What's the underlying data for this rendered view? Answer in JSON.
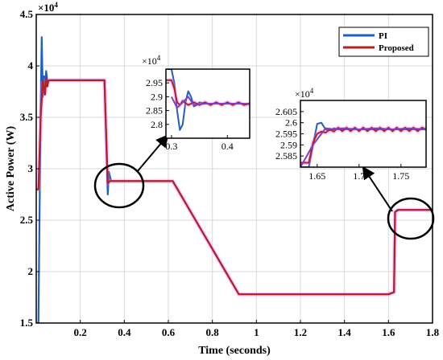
{
  "chart_data": [
    {
      "type": "line",
      "title": "",
      "xlabel": "Time (seconds)",
      "ylabel": "Active Power (W)",
      "y_exponent_label": "×10",
      "y_exponent_power": "4",
      "xlim": [
        0,
        1.8
      ],
      "ylim": [
        1.5,
        4.5
      ],
      "xticks": [
        "0.2",
        "0.4",
        "0.6",
        "0.8",
        "1",
        "1.2",
        "1.4",
        "1.6",
        "1.8"
      ],
      "yticks": [
        "1.5",
        "2",
        "2.5",
        "3",
        "3.5",
        "4",
        "4.5"
      ],
      "grid": true,
      "legend_position": "top-right",
      "series": [
        {
          "name": "PI",
          "color": "#1f5fbf",
          "x": [
            0.0,
            0.01,
            0.02,
            0.025,
            0.03,
            0.035,
            0.04,
            0.045,
            0.05,
            0.055,
            0.06,
            0.08,
            0.31,
            0.325,
            0.33,
            0.34,
            0.6,
            0.62,
            0.92,
            1.23,
            1.6,
            1.625,
            1.63,
            1.64,
            1.65,
            1.67,
            1.8
          ],
          "y": [
            1.5,
            1.5,
            3.6,
            4.28,
            3.7,
            3.9,
            3.78,
            3.95,
            3.86,
            3.86,
            3.86,
            3.86,
            3.86,
            2.75,
            2.97,
            2.88,
            2.88,
            2.88,
            1.78,
            1.78,
            1.78,
            1.8,
            2.58,
            2.6,
            2.6,
            2.6,
            2.6
          ]
        },
        {
          "name": "Proposed",
          "color": "#b22222",
          "x": [
            0.0,
            0.01,
            0.02,
            0.03,
            0.04,
            0.045,
            0.05,
            0.055,
            0.06,
            0.08,
            0.31,
            0.325,
            0.335,
            0.6,
            0.62,
            0.92,
            1.23,
            1.6,
            1.625,
            1.63,
            1.645,
            1.8
          ],
          "y": [
            2.8,
            2.8,
            3.5,
            3.85,
            3.72,
            3.88,
            3.8,
            3.85,
            3.86,
            3.86,
            3.86,
            2.86,
            2.88,
            2.88,
            2.88,
            1.78,
            1.78,
            1.78,
            1.8,
            2.58,
            2.6,
            2.6
          ]
        }
      ]
    },
    {
      "type": "line",
      "role": "inset-1",
      "y_exponent_label": "×10",
      "y_exponent_power": "4",
      "xlim": [
        0.29,
        0.44
      ],
      "ylim": [
        2.75,
        3.0
      ],
      "xticks": [
        "0.3",
        "0.4"
      ],
      "yticks": [
        "2.8",
        "2.85",
        "2.9",
        "2.95"
      ],
      "series": [
        {
          "name": "PI",
          "color": "#1f5fbf",
          "x": [
            0.29,
            0.3,
            0.305,
            0.31,
            0.315,
            0.32,
            0.325,
            0.33,
            0.335,
            0.34,
            0.345,
            0.35,
            0.36,
            0.44
          ],
          "y": [
            3.0,
            3.0,
            2.95,
            2.85,
            2.78,
            2.8,
            2.88,
            2.92,
            2.9,
            2.865,
            2.87,
            2.88,
            2.875,
            2.875
          ]
        },
        {
          "name": "Proposed",
          "color": "#b22222",
          "x": [
            0.29,
            0.3,
            0.305,
            0.31,
            0.315,
            0.32,
            0.33,
            0.34,
            0.35,
            0.36,
            0.37,
            0.38,
            0.39,
            0.4,
            0.41,
            0.42,
            0.43,
            0.44
          ],
          "y": [
            2.96,
            2.96,
            2.93,
            2.88,
            2.87,
            2.885,
            2.87,
            2.88,
            2.87,
            2.88,
            2.87,
            2.88,
            2.87,
            2.88,
            2.87,
            2.88,
            2.87,
            2.875
          ]
        },
        {
          "name": "",
          "color": "#7f3fbf",
          "x": [
            0.3,
            0.31,
            0.32,
            0.33,
            0.34,
            0.36,
            0.44
          ],
          "y": [
            2.9,
            2.86,
            2.88,
            2.9,
            2.87,
            2.875,
            2.875
          ]
        }
      ]
    },
    {
      "type": "line",
      "role": "inset-2",
      "y_exponent_label": "×10",
      "y_exponent_power": "4",
      "xlim": [
        1.63,
        1.78
      ],
      "ylim": [
        2.58,
        2.61
      ],
      "xticks": [
        "1.65",
        "1.7",
        "1.75"
      ],
      "yticks": [
        "2.585",
        "2.59",
        "2.595",
        "2.6",
        "2.605"
      ],
      "series": [
        {
          "name": "PI",
          "color": "#1f5fbf",
          "x": [
            1.63,
            1.64,
            1.645,
            1.65,
            1.655,
            1.66,
            1.665,
            1.67,
            1.675,
            1.68,
            1.7,
            1.72,
            1.74,
            1.76,
            1.78
          ],
          "y": [
            2.58,
            2.58,
            2.59,
            2.5995,
            2.6,
            2.597,
            2.5965,
            2.5975,
            2.597,
            2.597,
            2.597,
            2.597,
            2.597,
            2.597,
            2.597
          ]
        },
        {
          "name": "Proposed",
          "color": "#b22222",
          "x": [
            1.63,
            1.64,
            1.645,
            1.65,
            1.655,
            1.66,
            1.665,
            1.67,
            1.675,
            1.68,
            1.685,
            1.69,
            1.695,
            1.7,
            1.705,
            1.71,
            1.715,
            1.72,
            1.725,
            1.73,
            1.735,
            1.74,
            1.745,
            1.75,
            1.755,
            1.76,
            1.765,
            1.77,
            1.775,
            1.78
          ],
          "y": [
            2.582,
            2.582,
            2.591,
            2.595,
            2.596,
            2.5955,
            2.597,
            2.596,
            2.5978,
            2.5962,
            2.5978,
            2.5962,
            2.5978,
            2.5962,
            2.5978,
            2.5962,
            2.5978,
            2.5962,
            2.5978,
            2.5962,
            2.5978,
            2.5962,
            2.5978,
            2.5962,
            2.5978,
            2.5962,
            2.5978,
            2.5962,
            2.5978,
            2.597
          ]
        },
        {
          "name": "",
          "color": "#7f3fbf",
          "x": [
            1.63,
            1.645,
            1.66,
            1.67,
            1.68,
            1.7,
            1.72,
            1.74,
            1.76,
            1.78
          ],
          "y": [
            2.58,
            2.59,
            2.5975,
            2.597,
            2.5975,
            2.597,
            2.5975,
            2.597,
            2.5975,
            2.597
          ]
        }
      ]
    }
  ]
}
